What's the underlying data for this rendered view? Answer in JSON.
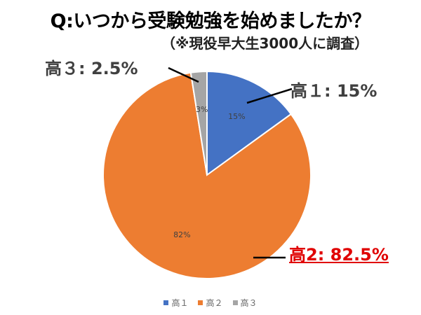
{
  "header": {
    "title": "Q:いつから受験勉強を始めましたか？",
    "subtitle": "（※現役早大生3000人に調査）"
  },
  "callouts": {
    "grade1": "高１: 15%",
    "grade2": "高2: 82.5%",
    "grade3": "高３: 2.5%"
  },
  "legend": [
    {
      "label": "高１",
      "color": "#4472C4"
    },
    {
      "label": "高２",
      "color": "#ED7D31"
    },
    {
      "label": "高３",
      "color": "#A5A5A5"
    }
  ],
  "chart_data": {
    "type": "pie",
    "title": "Q:いつから受験勉強を始めましたか？",
    "subtitle": "（※現役早大生3000人に調査）",
    "categories": [
      "高１",
      "高２",
      "高３"
    ],
    "values": [
      15,
      82.5,
      2.5
    ],
    "data_labels": [
      "15%",
      "82%",
      "3%"
    ],
    "colors": [
      "#4472C4",
      "#ED7D31",
      "#A5A5A5"
    ],
    "legend": "bottom"
  }
}
